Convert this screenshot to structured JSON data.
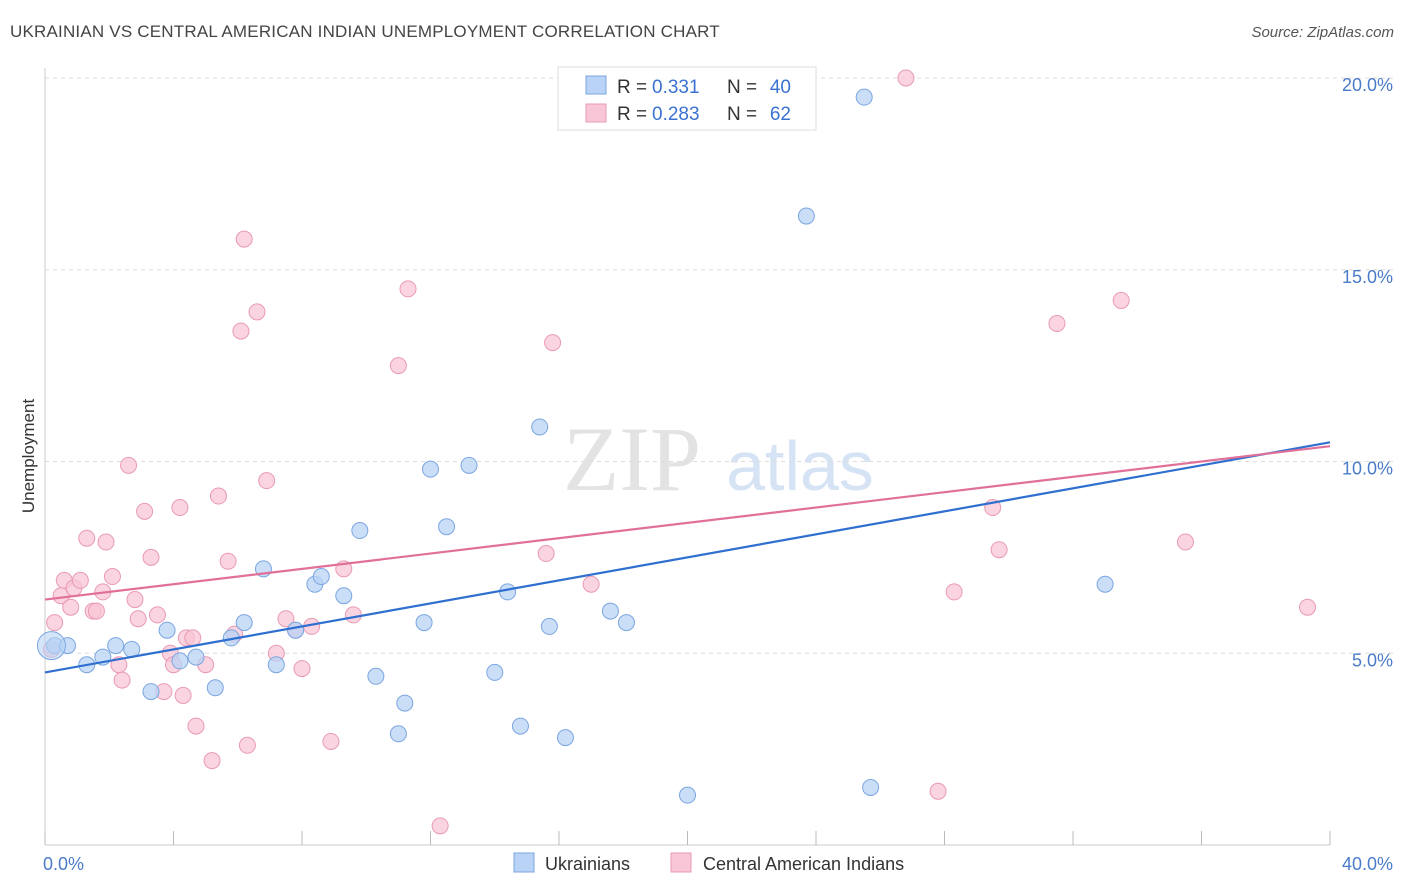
{
  "header": {
    "title": "UKRAINIAN VS CENTRAL AMERICAN INDIAN UNEMPLOYMENT CORRELATION CHART",
    "source": "Source: ZipAtlas.com"
  },
  "watermark": {
    "zip": "ZIP",
    "atlas": "atlas"
  },
  "colors": {
    "blue_fill": "#b8d3f5",
    "blue_stroke": "#7aa6e0",
    "blue_line": "#2f6fd0",
    "pink_fill": "#f8c6d6",
    "pink_stroke": "#e99ab5",
    "pink_line": "#e0709a",
    "tick_text": "#4a7cc9",
    "grid": "#dddddd"
  },
  "legend": {
    "rows": [
      {
        "r_label": "R =",
        "r_value": "0.331",
        "n_label": "N =",
        "n_value": "40"
      },
      {
        "r_label": "R =",
        "r_value": "0.283",
        "n_label": "N =",
        "n_value": "62"
      }
    ]
  },
  "bottom_legend": [
    "Ukrainians",
    "Central American Indians"
  ],
  "chart_data": {
    "type": "scatter",
    "title": "UKRAINIAN VS CENTRAL AMERICAN INDIAN UNEMPLOYMENT CORRELATION CHART",
    "xlabel": "",
    "ylabel": "Unemployment",
    "xlim": [
      0,
      40
    ],
    "ylim": [
      0,
      20
    ],
    "x_tick_labels": [
      "0.0%",
      "40.0%"
    ],
    "y_ticks": [
      5,
      10,
      15,
      20
    ],
    "y_tick_labels": [
      "5.0%",
      "10.0%",
      "15.0%",
      "20.0%"
    ],
    "grid": true,
    "legend_position": "top-center",
    "series": [
      {
        "name": "Ukrainians",
        "r": 0.331,
        "n": 40,
        "trend": {
          "x": [
            0,
            40
          ],
          "y": [
            4.5,
            10.5
          ]
        },
        "points": [
          [
            0.3,
            5.2
          ],
          [
            0.7,
            5.2
          ],
          [
            1.3,
            4.7
          ],
          [
            1.8,
            4.9
          ],
          [
            2.7,
            5.1
          ],
          [
            2.2,
            5.2
          ],
          [
            3.3,
            4.0
          ],
          [
            3.8,
            5.6
          ],
          [
            4.2,
            4.8
          ],
          [
            4.7,
            4.9
          ],
          [
            5.3,
            4.1
          ],
          [
            5.8,
            5.4
          ],
          [
            6.2,
            5.8
          ],
          [
            6.8,
            7.2
          ],
          [
            7.2,
            4.7
          ],
          [
            7.8,
            5.6
          ],
          [
            8.4,
            6.8
          ],
          [
            8.6,
            7.0
          ],
          [
            9.3,
            6.5
          ],
          [
            9.8,
            8.2
          ],
          [
            10.3,
            4.4
          ],
          [
            11.0,
            2.9
          ],
          [
            11.2,
            3.7
          ],
          [
            11.8,
            5.8
          ],
          [
            12.0,
            9.8
          ],
          [
            12.5,
            8.3
          ],
          [
            13.2,
            9.9
          ],
          [
            14.0,
            4.5
          ],
          [
            14.4,
            6.6
          ],
          [
            14.8,
            3.1
          ],
          [
            15.4,
            10.9
          ],
          [
            15.7,
            5.7
          ],
          [
            16.2,
            2.8
          ],
          [
            17.6,
            6.1
          ],
          [
            18.1,
            5.8
          ],
          [
            20.0,
            1.3
          ],
          [
            23.7,
            16.4
          ],
          [
            25.5,
            19.5
          ],
          [
            25.7,
            1.5
          ],
          [
            33.0,
            6.8
          ]
        ]
      },
      {
        "name": "Central American Indians",
        "r": 0.283,
        "n": 62,
        "trend": {
          "x": [
            0,
            40
          ],
          "y": [
            6.4,
            10.4
          ]
        },
        "points": [
          [
            0.2,
            5.1
          ],
          [
            0.3,
            5.8
          ],
          [
            0.5,
            6.5
          ],
          [
            0.6,
            6.9
          ],
          [
            0.8,
            6.2
          ],
          [
            0.9,
            6.7
          ],
          [
            1.1,
            6.9
          ],
          [
            1.3,
            8.0
          ],
          [
            1.5,
            6.1
          ],
          [
            1.6,
            6.1
          ],
          [
            1.8,
            6.6
          ],
          [
            1.9,
            7.9
          ],
          [
            2.1,
            7.0
          ],
          [
            2.3,
            4.7
          ],
          [
            2.4,
            4.3
          ],
          [
            2.6,
            9.9
          ],
          [
            2.8,
            6.4
          ],
          [
            2.9,
            5.9
          ],
          [
            3.1,
            8.7
          ],
          [
            3.3,
            7.5
          ],
          [
            3.5,
            6.0
          ],
          [
            3.7,
            4.0
          ],
          [
            3.9,
            5.0
          ],
          [
            4.0,
            4.7
          ],
          [
            4.2,
            8.8
          ],
          [
            4.4,
            5.4
          ],
          [
            4.6,
            5.4
          ],
          [
            4.7,
            3.1
          ],
          [
            5.0,
            4.7
          ],
          [
            5.2,
            2.2
          ],
          [
            5.4,
            9.1
          ],
          [
            5.7,
            7.4
          ],
          [
            5.9,
            5.5
          ],
          [
            6.2,
            15.8
          ],
          [
            6.3,
            2.6
          ],
          [
            6.6,
            13.9
          ],
          [
            6.9,
            9.5
          ],
          [
            7.2,
            5.0
          ],
          [
            7.5,
            5.9
          ],
          [
            7.8,
            5.6
          ],
          [
            8.0,
            4.6
          ],
          [
            8.3,
            5.7
          ],
          [
            8.9,
            2.7
          ],
          [
            9.3,
            7.2
          ],
          [
            9.6,
            6.0
          ],
          [
            11.0,
            12.5
          ],
          [
            11.3,
            14.5
          ],
          [
            12.3,
            0.5
          ],
          [
            15.6,
            7.6
          ],
          [
            15.8,
            13.1
          ],
          [
            17.0,
            6.8
          ],
          [
            26.8,
            20.0
          ],
          [
            27.8,
            1.4
          ],
          [
            28.3,
            6.6
          ],
          [
            29.5,
            8.8
          ],
          [
            29.7,
            7.7
          ],
          [
            31.5,
            13.6
          ],
          [
            33.5,
            14.2
          ],
          [
            35.5,
            7.9
          ],
          [
            39.3,
            6.2
          ],
          [
            6.1,
            13.4
          ],
          [
            4.3,
            3.9
          ]
        ]
      }
    ]
  }
}
